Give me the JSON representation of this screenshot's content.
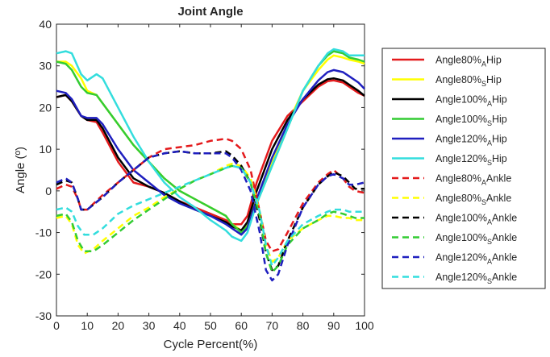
{
  "chart_data": {
    "type": "line",
    "title": "Joint Angle",
    "xlabel": "Cycle Percent(%)",
    "ylabel": "Angle (º)",
    "xlim": [
      0,
      100
    ],
    "ylim": [
      -30,
      40
    ],
    "xticks": [
      0,
      10,
      20,
      30,
      40,
      50,
      60,
      70,
      80,
      90,
      100
    ],
    "yticks": [
      -30,
      -20,
      -10,
      0,
      10,
      20,
      30,
      40
    ],
    "grid": false,
    "legend_position": "outside-right",
    "series": [
      {
        "name": "Angle80%AHip",
        "label": {
          "base": "Angle80%",
          "sub": "A",
          "tail": "Hip"
        },
        "color": "#e41a1c",
        "dash": "solid",
        "x": [
          0,
          3,
          5,
          8,
          10,
          13,
          15,
          20,
          25,
          30,
          35,
          40,
          45,
          50,
          55,
          57,
          60,
          62,
          65,
          70,
          75,
          80,
          85,
          88,
          90,
          93,
          95,
          98,
          100
        ],
        "y": [
          22.5,
          23,
          21.5,
          18,
          17,
          16.5,
          14,
          7,
          2,
          1,
          -0.5,
          -2.5,
          -4,
          -5.5,
          -7,
          -8,
          -8,
          -6,
          2,
          12,
          18,
          21.5,
          25,
          26.3,
          26.5,
          26,
          25,
          23.5,
          22.8
        ]
      },
      {
        "name": "Angle80%SHip",
        "label": {
          "base": "Angle80%",
          "sub": "S",
          "tail": "Hip"
        },
        "color": "#ffff00",
        "dash": "solid",
        "x": [
          0,
          3,
          5,
          8,
          10,
          13,
          15,
          20,
          25,
          30,
          35,
          40,
          45,
          50,
          55,
          57,
          60,
          62,
          65,
          70,
          75,
          80,
          85,
          88,
          90,
          93,
          95,
          98,
          100
        ],
        "y": [
          31,
          31,
          30,
          27,
          24,
          23,
          21,
          16,
          11,
          7,
          3,
          0,
          -2,
          -4,
          -6,
          -8,
          -9.5,
          -8,
          -2,
          7,
          16,
          24,
          29,
          31.5,
          32.5,
          32,
          31.5,
          31,
          30.5
        ]
      },
      {
        "name": "Angle100%AHip",
        "label": {
          "base": "Angle100%",
          "sub": "A",
          "tail": "Hip"
        },
        "color": "#000000",
        "dash": "solid",
        "x": [
          0,
          3,
          5,
          8,
          10,
          13,
          15,
          20,
          25,
          30,
          35,
          40,
          45,
          50,
          55,
          57,
          60,
          62,
          65,
          70,
          75,
          80,
          85,
          88,
          90,
          93,
          95,
          98,
          100
        ],
        "y": [
          22.5,
          23,
          21.5,
          18,
          17,
          17,
          15,
          8,
          3,
          1,
          -0.5,
          -2.5,
          -4.5,
          -6,
          -7.5,
          -8.5,
          -9.5,
          -7.5,
          0,
          10,
          17,
          22,
          25.5,
          26.8,
          27,
          26.5,
          25.5,
          24,
          22.8
        ]
      },
      {
        "name": "Angle100%SHip",
        "label": {
          "base": "Angle100%",
          "sub": "S",
          "tail": "Hip"
        },
        "color": "#33cc33",
        "dash": "solid",
        "x": [
          0,
          3,
          5,
          8,
          10,
          13,
          15,
          20,
          25,
          30,
          35,
          40,
          45,
          50,
          55,
          57,
          60,
          62,
          65,
          70,
          75,
          80,
          85,
          88,
          90,
          93,
          95,
          98,
          100
        ],
        "y": [
          31,
          30.5,
          29,
          25,
          23.5,
          23,
          21,
          16,
          11,
          7,
          3,
          0,
          -2,
          -4,
          -6,
          -8,
          -10,
          -8.5,
          -3,
          6,
          15,
          24,
          30,
          32.5,
          33.5,
          33,
          32,
          31.5,
          31
        ]
      },
      {
        "name": "Angle120%AHip",
        "label": {
          "base": "Angle120%",
          "sub": "A",
          "tail": "Hip"
        },
        "color": "#1f1fbf",
        "dash": "solid",
        "x": [
          0,
          3,
          5,
          8,
          10,
          13,
          15,
          20,
          25,
          30,
          35,
          40,
          45,
          50,
          55,
          57,
          60,
          62,
          65,
          70,
          75,
          80,
          85,
          88,
          90,
          93,
          95,
          98,
          100
        ],
        "y": [
          24,
          23.5,
          22,
          18,
          17.5,
          17.5,
          16,
          10,
          5,
          2,
          -1,
          -3,
          -4.5,
          -6,
          -8,
          -9,
          -10.5,
          -9,
          -2,
          8,
          16,
          22,
          26.5,
          28.5,
          29,
          28.5,
          27.5,
          26,
          24.5
        ]
      },
      {
        "name": "Angle120%SHip",
        "label": {
          "base": "Angle120%",
          "sub": "S",
          "tail": "Hip"
        },
        "color": "#33dddd",
        "dash": "solid",
        "x": [
          0,
          3,
          5,
          8,
          10,
          13,
          15,
          20,
          25,
          30,
          35,
          40,
          45,
          50,
          55,
          57,
          60,
          62,
          65,
          70,
          75,
          80,
          85,
          88,
          90,
          93,
          95,
          98,
          100
        ],
        "y": [
          33,
          33.5,
          33,
          28,
          26.5,
          28,
          27,
          20,
          13,
          7,
          2,
          -1.5,
          -4,
          -7,
          -9.5,
          -11,
          -12,
          -10,
          -3,
          6,
          15,
          24,
          30,
          33,
          34,
          33.5,
          32.5,
          32.5,
          32.5
        ]
      },
      {
        "name": "Angle80%AAnkle",
        "label": {
          "base": "Angle80%",
          "sub": "A",
          "tail": "Ankle"
        },
        "color": "#e41a1c",
        "dash": "dashed",
        "x": [
          0,
          3,
          5,
          7,
          8,
          10,
          15,
          20,
          25,
          30,
          35,
          40,
          45,
          50,
          55,
          57,
          60,
          63,
          66,
          68,
          70,
          72,
          75,
          80,
          85,
          88,
          90,
          93,
          95,
          97,
          100
        ],
        "y": [
          0.5,
          1.5,
          1,
          -2,
          -4.5,
          -4.5,
          -1,
          2,
          5,
          8,
          10,
          10.5,
          11,
          12,
          12.5,
          12,
          10,
          5,
          -5,
          -12,
          -14.5,
          -14,
          -10,
          -3,
          2,
          4,
          5,
          3,
          1,
          0,
          -0.5
        ]
      },
      {
        "name": "Angle80%SAnkle",
        "label": {
          "base": "Angle80%",
          "sub": "S",
          "tail": "Ankle"
        },
        "color": "#ffff00",
        "dash": "dashed",
        "x": [
          0,
          3,
          5,
          7,
          9,
          12,
          15,
          20,
          25,
          30,
          35,
          40,
          45,
          50,
          55,
          57,
          60,
          63,
          66,
          68,
          70,
          72,
          75,
          80,
          85,
          88,
          90,
          93,
          95,
          97,
          100
        ],
        "y": [
          -6.5,
          -6,
          -8,
          -13,
          -15,
          -14,
          -12,
          -9,
          -6,
          -4,
          -1.5,
          0.5,
          2.5,
          4,
          6,
          6.5,
          6,
          3,
          -5,
          -13,
          -17,
          -16,
          -12,
          -9,
          -7,
          -6,
          -6,
          -6.5,
          -6.5,
          -7,
          -7
        ]
      },
      {
        "name": "Angle100%AAnkle",
        "label": {
          "base": "Angle100%",
          "sub": "A",
          "tail": "Ankle"
        },
        "color": "#000000",
        "dash": "dashed",
        "x": [
          0,
          3,
          5,
          7,
          8,
          10,
          15,
          20,
          25,
          30,
          35,
          40,
          45,
          50,
          55,
          57,
          60,
          63,
          66,
          68,
          70,
          72,
          75,
          80,
          85,
          88,
          90,
          93,
          95,
          97,
          100
        ],
        "y": [
          1.5,
          2.5,
          2,
          -2,
          -4.5,
          -4.5,
          -1.5,
          2,
          5,
          8,
          9,
          9.5,
          9,
          9,
          9.5,
          8.5,
          6,
          2,
          -7,
          -15,
          -19,
          -18,
          -12,
          -4,
          1.5,
          3.5,
          4.5,
          3.5,
          2,
          0.5,
          0.5
        ]
      },
      {
        "name": "Angle100%SAnkle",
        "label": {
          "base": "Angle100%",
          "sub": "S",
          "tail": "Ankle"
        },
        "color": "#33cc33",
        "dash": "dashed",
        "x": [
          0,
          3,
          5,
          7,
          9,
          12,
          15,
          20,
          25,
          30,
          35,
          40,
          45,
          50,
          55,
          57,
          60,
          63,
          66,
          68,
          70,
          72,
          75,
          80,
          85,
          88,
          90,
          93,
          95,
          97,
          100
        ],
        "y": [
          -6,
          -5.5,
          -7.5,
          -12,
          -14.5,
          -14.5,
          -13,
          -10,
          -7,
          -4.5,
          -2,
          0.5,
          2.5,
          4,
          5.5,
          6,
          5.5,
          2,
          -6,
          -15,
          -19.5,
          -18,
          -13,
          -9,
          -7,
          -5.5,
          -5,
          -5.5,
          -6,
          -6.5,
          -6.5
        ]
      },
      {
        "name": "Angle120%AAnkle",
        "label": {
          "base": "Angle120%",
          "sub": "A",
          "tail": "Ankle"
        },
        "color": "#1f1fbf",
        "dash": "dashed",
        "x": [
          0,
          3,
          5,
          7,
          8,
          10,
          15,
          20,
          25,
          30,
          35,
          40,
          45,
          50,
          55,
          57,
          60,
          63,
          66,
          68,
          70,
          72,
          75,
          80,
          85,
          88,
          90,
          93,
          95,
          97,
          100
        ],
        "y": [
          2,
          3,
          2,
          -2,
          -4.5,
          -4.5,
          -1.5,
          2,
          5,
          8,
          9,
          9.5,
          9,
          9,
          9,
          8,
          5,
          0,
          -10,
          -19,
          -21.5,
          -20,
          -13,
          -4,
          1.5,
          3.5,
          4,
          3,
          1.5,
          1.5,
          2
        ]
      },
      {
        "name": "Angle120%SAnkle",
        "label": {
          "base": "Angle120%",
          "sub": "S",
          "tail": "Ankle"
        },
        "color": "#33dddd",
        "dash": "dashed",
        "x": [
          0,
          3,
          5,
          7,
          9,
          12,
          15,
          20,
          25,
          30,
          35,
          40,
          45,
          50,
          55,
          57,
          60,
          63,
          66,
          68,
          70,
          72,
          75,
          80,
          85,
          88,
          90,
          93,
          95,
          97,
          100
        ],
        "y": [
          -4.5,
          -4,
          -5,
          -8.5,
          -10.5,
          -10.5,
          -9,
          -5.5,
          -3.5,
          -2,
          -0.5,
          1,
          2.5,
          4,
          5.5,
          6,
          5.5,
          2,
          -5,
          -13,
          -18,
          -16,
          -12,
          -8,
          -6,
          -5,
          -4.5,
          -4.5,
          -5,
          -5,
          -5
        ]
      }
    ]
  }
}
